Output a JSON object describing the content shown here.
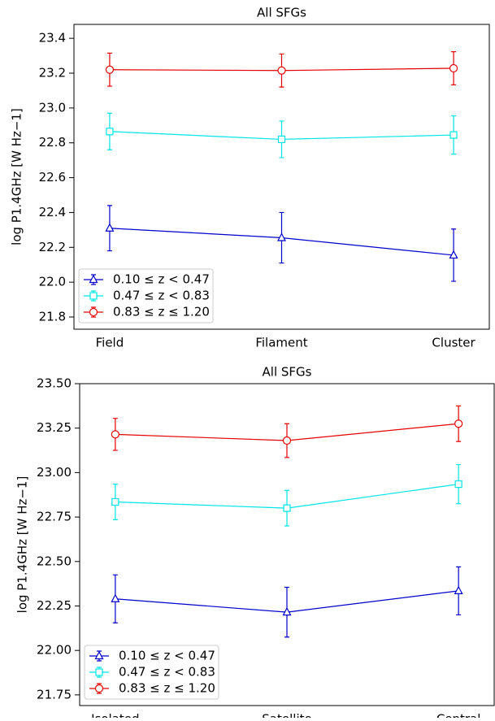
{
  "chart_data": [
    {
      "type": "line",
      "title": "All SFGs",
      "y_label": "log P1.4GHz [W Hz−1]",
      "categories": [
        "Field",
        "Filament",
        "Cluster"
      ],
      "ylim": [
        21.73,
        23.48
      ],
      "yticks": [
        21.8,
        {
          "value": 22,
          "label": "22.0"
        },
        22.2,
        22.4,
        22.6,
        22.8,
        {
          "value": 23,
          "label": "23.0"
        },
        23.2,
        23.4
      ],
      "legend": "lower left",
      "series": [
        {
          "name": "0.10 ≤  z < 0.47",
          "color": "#0000cc",
          "marker": "triangle",
          "values": [
            22.31,
            22.255,
            22.155
          ],
          "errors": [
            0.13,
            0.145,
            0.15
          ]
        },
        {
          "name": "0.47 ≤  z < 0.83",
          "color": "#00e5e5",
          "marker": "square",
          "values": [
            22.865,
            22.82,
            22.845
          ],
          "errors": [
            0.105,
            0.105,
            0.11
          ]
        },
        {
          "name": "0.83 ≤  z ≤  1.20",
          "color": "#e50000",
          "marker": "circle",
          "values": [
            23.22,
            23.215,
            23.228
          ],
          "errors": [
            0.095,
            0.095,
            0.095
          ]
        }
      ]
    },
    {
      "type": "line",
      "title": "All SFGs",
      "y_label": "log P1.4GHz [W Hz−1]",
      "categories": [
        "Isolated",
        "Satellite",
        "Central"
      ],
      "ylim": [
        21.69,
        23.5
      ],
      "yticks": [
        {
          "value": 21.75,
          "label": "21.75"
        },
        {
          "value": 22,
          "label": "22.00"
        },
        {
          "value": 22.25,
          "label": "22.25"
        },
        {
          "value": 22.5,
          "label": "22.50"
        },
        {
          "value": 22.75,
          "label": "22.75"
        },
        {
          "value": 23,
          "label": "23.00"
        },
        {
          "value": 23.25,
          "label": "23.25"
        },
        {
          "value": 23.5,
          "label": "23.50"
        }
      ],
      "legend": "lower left",
      "series": [
        {
          "name": "0.10 ≤  z < 0.47",
          "color": "#0000cc",
          "marker": "triangle",
          "values": [
            22.29,
            22.215,
            22.335
          ],
          "errors": [
            0.135,
            0.14,
            0.135
          ]
        },
        {
          "name": "0.47 ≤  z < 0.83",
          "color": "#00e5e5",
          "marker": "square",
          "values": [
            22.835,
            22.8,
            22.935
          ],
          "errors": [
            0.1,
            0.1,
            0.11
          ]
        },
        {
          "name": "0.83 ≤  z ≤  1.20",
          "color": "#e50000",
          "marker": "circle",
          "values": [
            23.215,
            23.18,
            23.275
          ],
          "errors": [
            0.09,
            0.095,
            0.1
          ]
        }
      ]
    }
  ]
}
